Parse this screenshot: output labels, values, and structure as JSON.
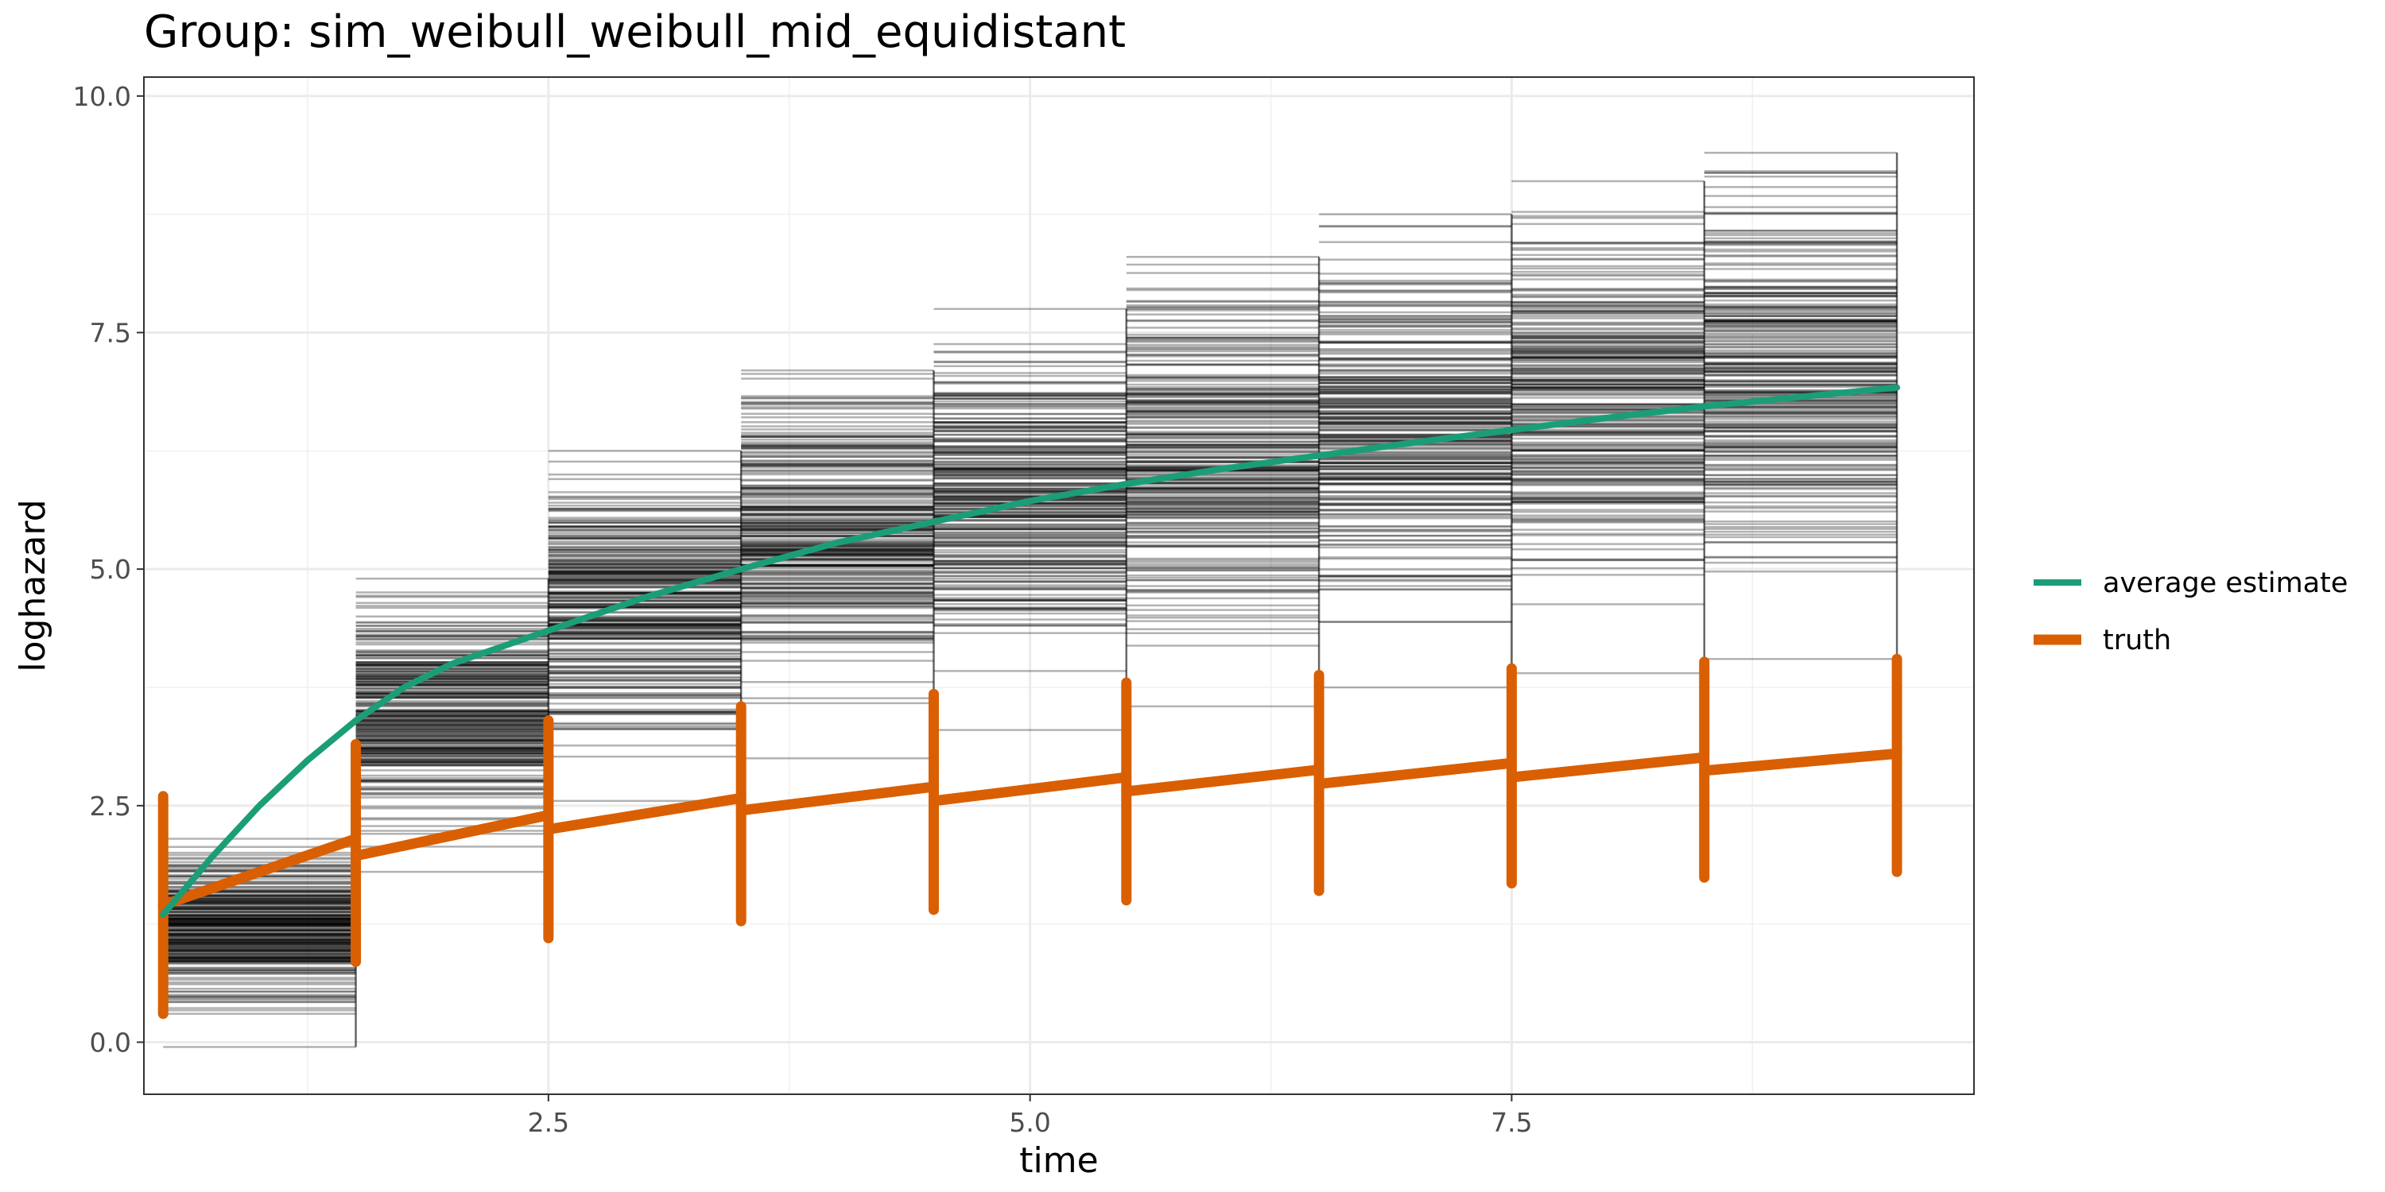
{
  "chart_data": {
    "type": "line",
    "title": "Group: sim_weibull_weibull_mid_equidistant",
    "xlabel": "time",
    "ylabel": "loghazard",
    "xlim": [
      0.4,
      9.9
    ],
    "ylim": [
      -0.55,
      10.2
    ],
    "x_ticks": [
      2.5,
      5.0,
      7.5
    ],
    "x_tick_labels": [
      "2.5",
      "5.0",
      "7.5"
    ],
    "y_ticks": [
      0.0,
      2.5,
      5.0,
      7.5,
      10.0
    ],
    "y_tick_labels": [
      "0.0",
      "2.5",
      "5.0",
      "7.5",
      "10.0"
    ],
    "grid": true,
    "legend_position": "right",
    "intervals": [
      {
        "start": 0.5,
        "end": 1.5,
        "min": -0.05,
        "max": 2.15
      },
      {
        "start": 1.5,
        "end": 2.5,
        "min": 1.8,
        "max": 4.9
      },
      {
        "start": 2.5,
        "end": 3.5,
        "min": 2.55,
        "max": 6.25
      },
      {
        "start": 3.5,
        "end": 4.5,
        "min": 3.0,
        "max": 7.1
      },
      {
        "start": 4.5,
        "end": 5.5,
        "min": 3.3,
        "max": 7.75
      },
      {
        "start": 5.5,
        "end": 6.5,
        "min": 3.55,
        "max": 8.3
      },
      {
        "start": 6.5,
        "end": 7.5,
        "min": 3.75,
        "max": 8.75
      },
      {
        "start": 7.5,
        "end": 8.5,
        "min": 3.9,
        "max": 9.1
      },
      {
        "start": 8.5,
        "end": 9.5,
        "min": 4.05,
        "max": 9.4
      }
    ],
    "series": [
      {
        "name": "average estimate",
        "color": "#1b9e77",
        "x": [
          0.5,
          0.75,
          1.0,
          1.25,
          1.5,
          1.75,
          2.0,
          2.5,
          3.0,
          3.5,
          4.0,
          4.5,
          5.0,
          5.5,
          6.0,
          6.5,
          7.0,
          7.5,
          8.0,
          8.5,
          9.0,
          9.5
        ],
        "y": [
          1.35,
          1.95,
          2.5,
          2.98,
          3.4,
          3.75,
          4.0,
          4.35,
          4.7,
          5.0,
          5.28,
          5.5,
          5.72,
          5.9,
          6.06,
          6.2,
          6.34,
          6.47,
          6.6,
          6.72,
          6.82,
          6.92
        ]
      },
      {
        "name": "truth",
        "color": "#d95f02",
        "x": [
          0.5,
          1.5,
          1.5,
          2.5,
          2.5,
          3.5,
          3.5,
          4.5,
          4.5,
          5.5,
          5.5,
          6.5,
          6.5,
          7.5,
          7.5,
          8.5,
          8.5,
          9.5
        ],
        "y": [
          1.45,
          2.15,
          1.97,
          2.4,
          2.25,
          2.58,
          2.45,
          2.7,
          2.55,
          2.8,
          2.65,
          2.88,
          2.73,
          2.95,
          2.8,
          3.01,
          2.87,
          3.05
        ],
        "vertical_segments": [
          {
            "x": 0.5,
            "y0": 0.3,
            "y1": 2.6
          },
          {
            "x": 1.5,
            "y0": 0.85,
            "y1": 3.15
          },
          {
            "x": 2.5,
            "y0": 1.1,
            "y1": 3.4
          },
          {
            "x": 3.5,
            "y0": 1.28,
            "y1": 3.55
          },
          {
            "x": 4.5,
            "y0": 1.4,
            "y1": 3.68
          },
          {
            "x": 5.5,
            "y0": 1.5,
            "y1": 3.8
          },
          {
            "x": 6.5,
            "y0": 1.6,
            "y1": 3.88
          },
          {
            "x": 7.5,
            "y0": 1.68,
            "y1": 3.95
          },
          {
            "x": 8.5,
            "y0": 1.74,
            "y1": 4.02
          },
          {
            "x": 9.5,
            "y0": 1.8,
            "y1": 4.05
          }
        ]
      }
    ]
  }
}
